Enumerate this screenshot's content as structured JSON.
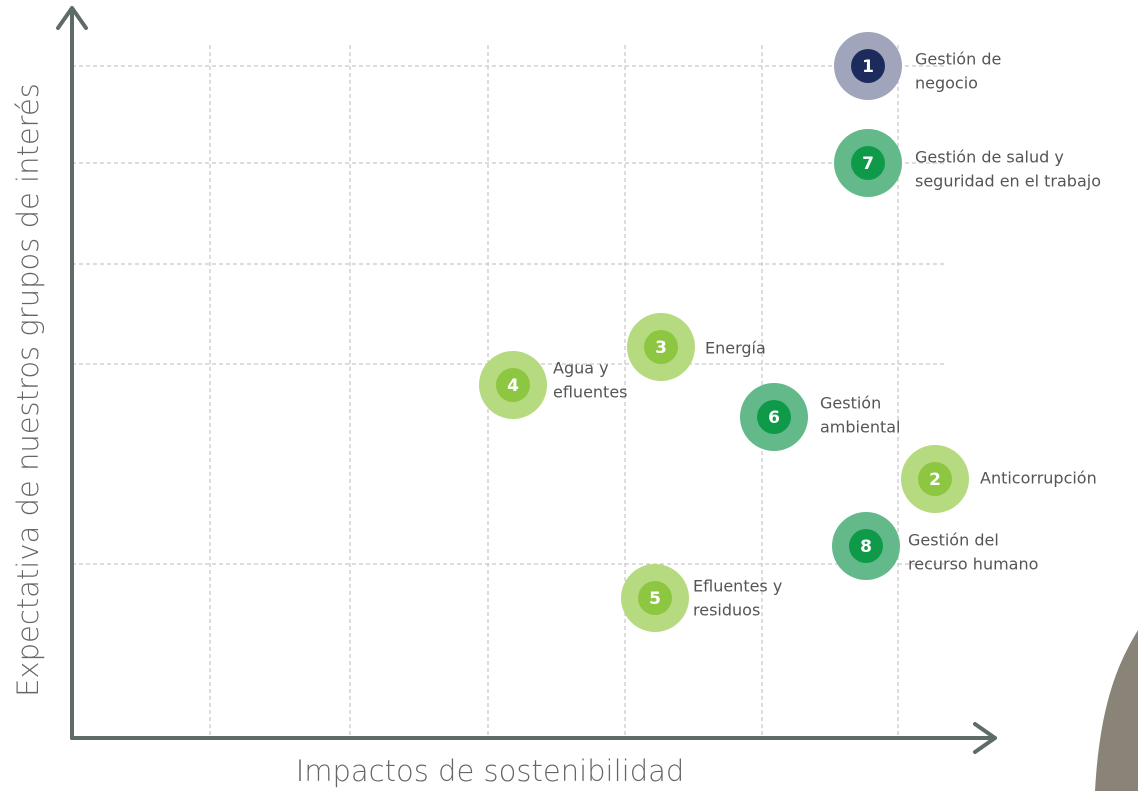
{
  "y_axis_title": "Expectativa de nuestros grupos de interés",
  "x_axis_title": "Impactos de sostenibilidad",
  "nodes": [
    {
      "number": "1",
      "label": [
        "Gestión de",
        "negocio"
      ],
      "color": "#a0a5bb",
      "inner_color": "#1c2b5c"
    },
    {
      "number": "7",
      "label": [
        "Gestión de salud y",
        "seguridad en el trabajo"
      ],
      "color": "#63b98a",
      "inner_color": "#0e9a49"
    },
    {
      "number": "3",
      "label": [
        "Energía"
      ],
      "color": "#b6da7f",
      "inner_color": "#8dc641"
    },
    {
      "number": "4",
      "label": [
        "Agua y",
        "efluentes"
      ],
      "color": "#b6da7f",
      "inner_color": "#8dc641"
    },
    {
      "number": "6",
      "label": [
        "Gestión",
        "ambiental"
      ],
      "color": "#63b98a",
      "inner_color": "#0e9a49"
    },
    {
      "number": "2",
      "label": [
        "Anticorrupción"
      ],
      "color": "#b6da7f",
      "inner_color": "#8dc641"
    },
    {
      "number": "8",
      "label": [
        "Gestión del",
        "recurso humano"
      ],
      "color": "#63b98a",
      "inner_color": "#0e9a49"
    },
    {
      "number": "5",
      "label": [
        "Efluentes y",
        "residuos"
      ],
      "color": "#b6da7f",
      "inner_color": "#8dc641"
    }
  ]
}
